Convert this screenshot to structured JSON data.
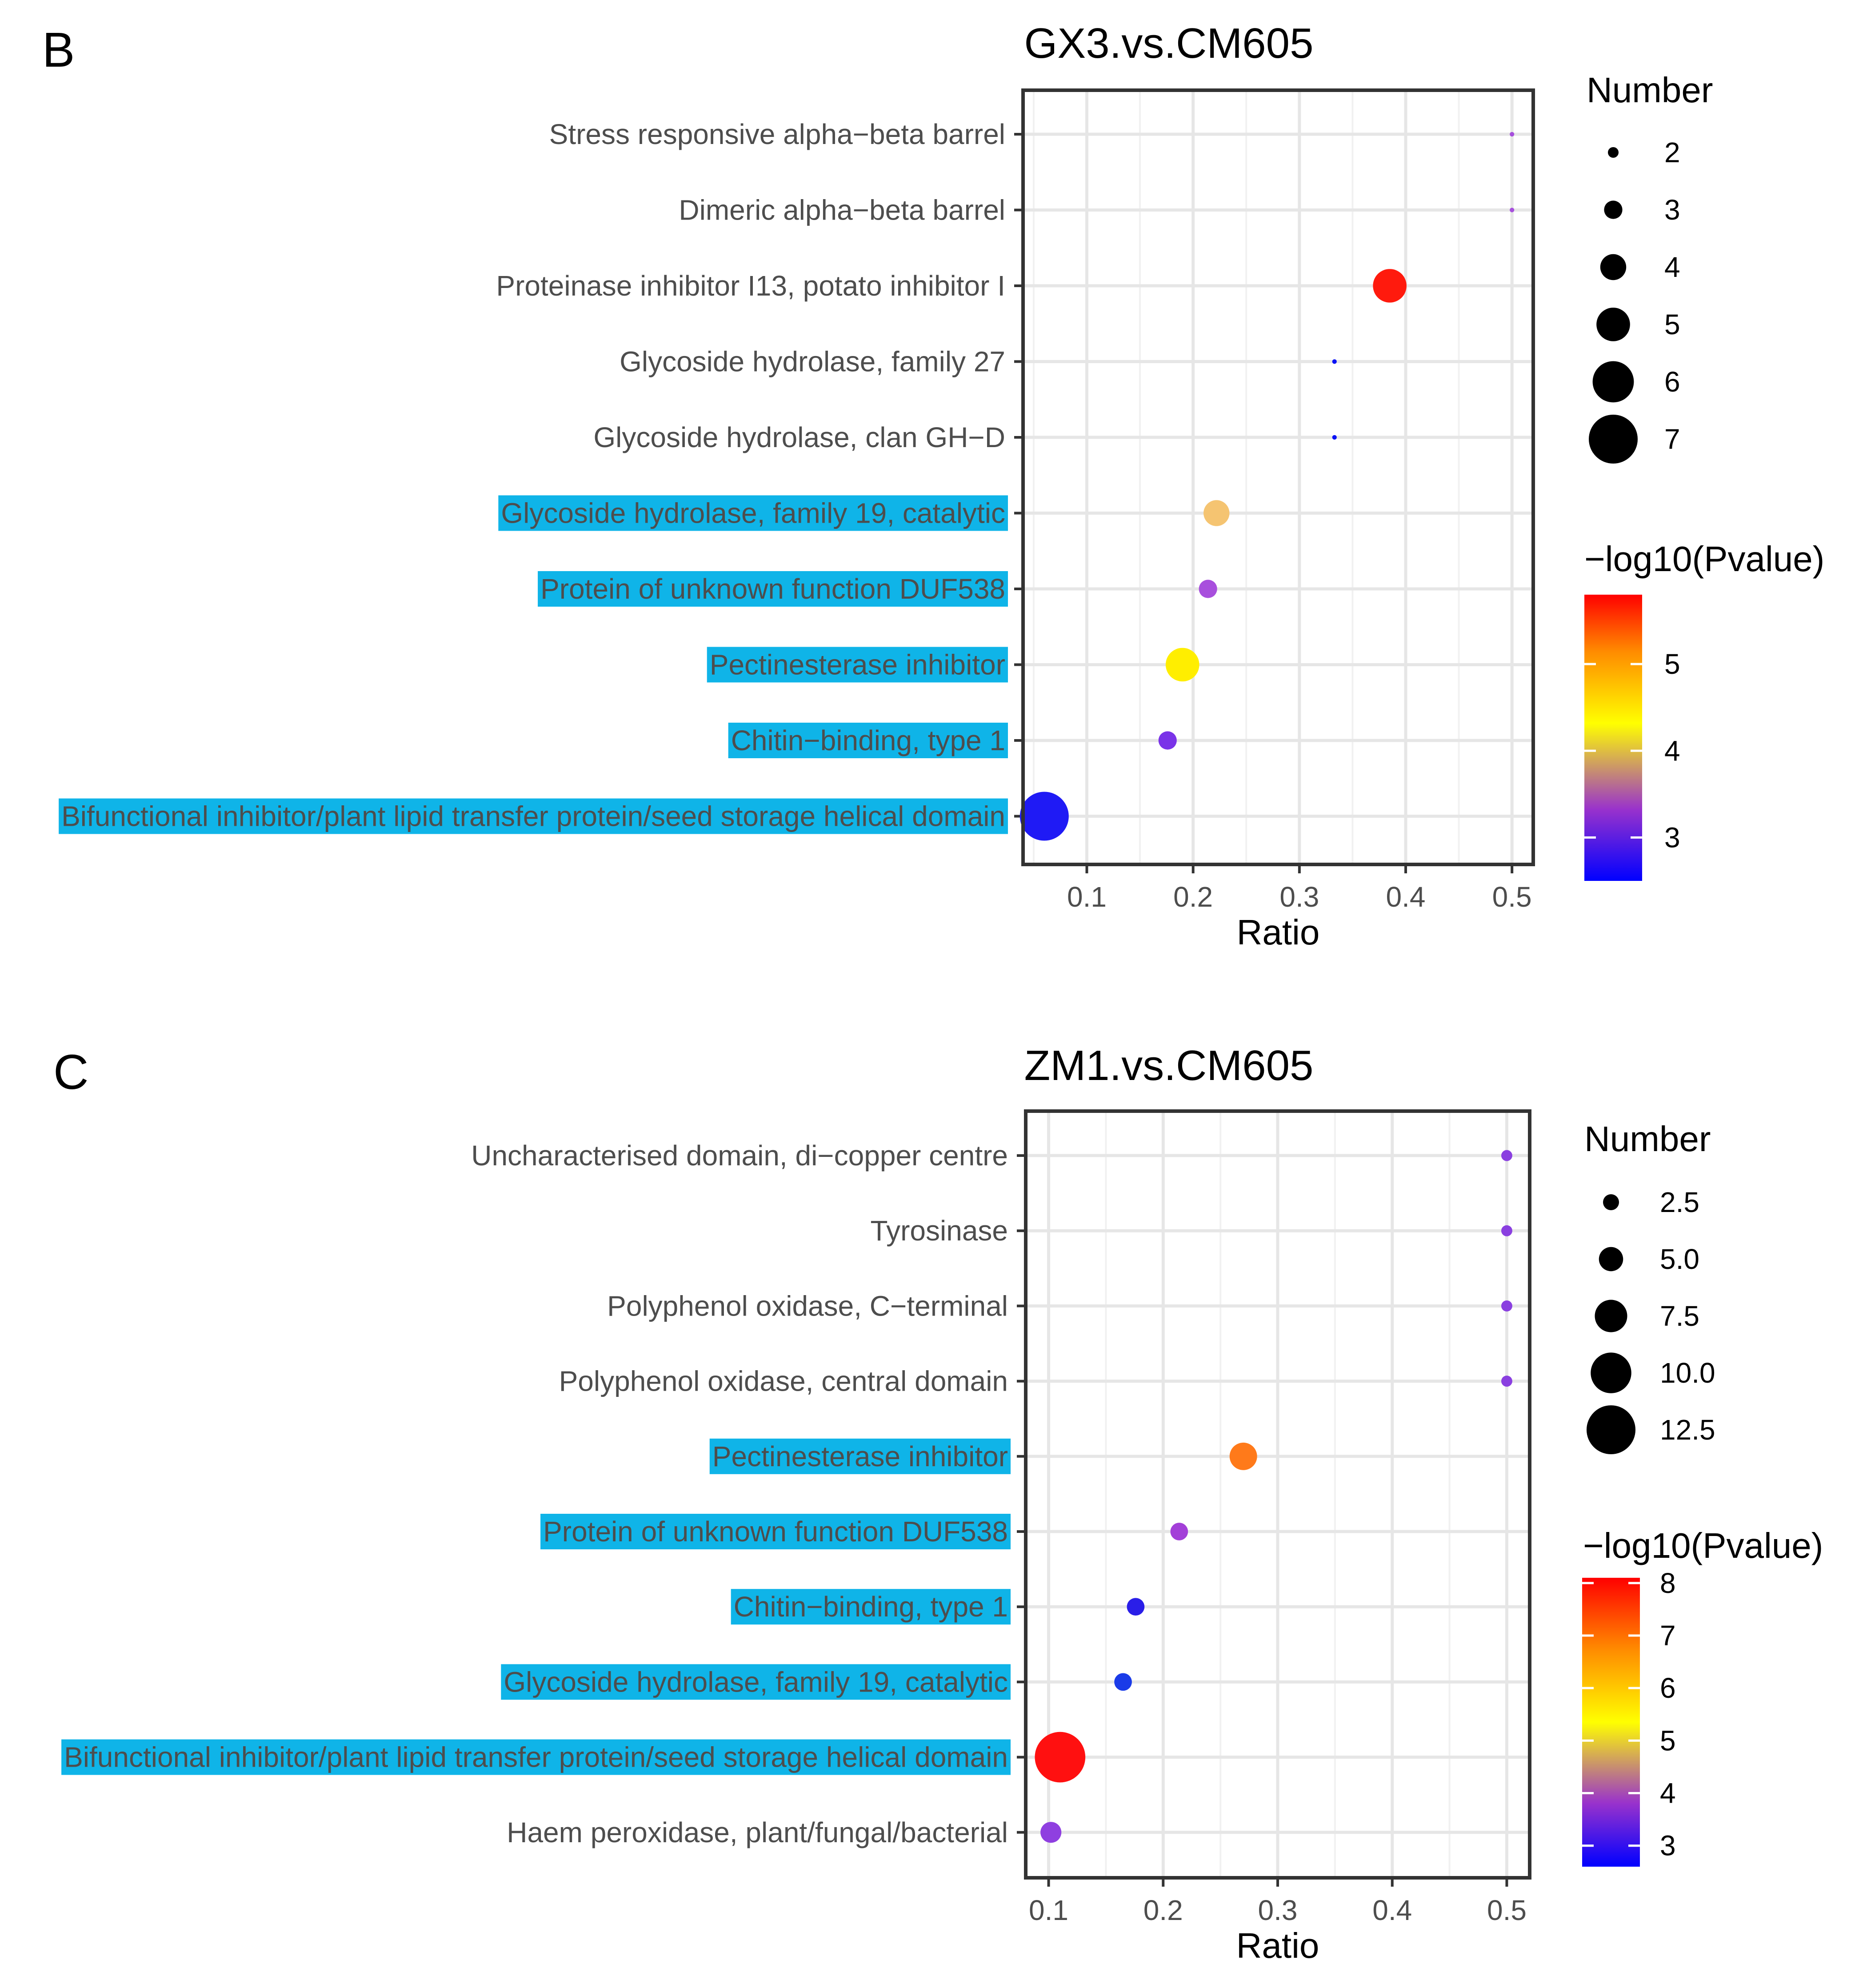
{
  "chart_data": [
    {
      "panel_label": "B",
      "type": "scatter",
      "title": "GX3.vs.CM605",
      "xlabel": "Ratio",
      "ylabel": "",
      "xlim": [
        0.04,
        0.52
      ],
      "xticks": [
        0.1,
        0.2,
        0.3,
        0.4,
        0.5
      ],
      "xtick_labels": [
        "0.1",
        "0.2",
        "0.3",
        "0.4",
        "0.5"
      ],
      "grid": true,
      "color_scale": {
        "stops": [
          "#0000ff",
          "#9932cc",
          "#ffff00",
          "#ff8c00",
          "#ff0000"
        ]
      },
      "points": [
        {
          "term": "Stress responsive alpha−beta barrel",
          "ratio": 0.5,
          "number": 1,
          "neglog10p": 3.0,
          "color": "#a64fdc",
          "highlight": false
        },
        {
          "term": "Dimeric alpha−beta barrel",
          "ratio": 0.5,
          "number": 1,
          "neglog10p": 3.0,
          "color": "#a64fdc",
          "highlight": false
        },
        {
          "term": "Proteinase inhibitor I13, potato inhibitor I",
          "ratio": 0.385,
          "number": 5,
          "neglog10p": 5.7,
          "color": "#ff1a0d",
          "highlight": false
        },
        {
          "term": "Glycoside hydrolase, family 27",
          "ratio": 0.333,
          "number": 1,
          "neglog10p": 2.5,
          "color": "#0a12f5",
          "highlight": false
        },
        {
          "term": "Glycoside hydrolase, clan GH−D",
          "ratio": 0.333,
          "number": 1,
          "neglog10p": 2.5,
          "color": "#0a12f5",
          "highlight": false
        },
        {
          "term": "Glycoside hydrolase, family 19, catalytic",
          "ratio": 0.222,
          "number": 4,
          "neglog10p": 3.8,
          "color": "#f5c471",
          "highlight": true
        },
        {
          "term": "Protein of unknown function DUF538",
          "ratio": 0.214,
          "number": 3,
          "neglog10p": 3.0,
          "color": "#a84fdd",
          "highlight": true
        },
        {
          "term": "Pectinesterase inhibitor",
          "ratio": 0.19,
          "number": 5,
          "neglog10p": 4.2,
          "color": "#ffee00",
          "highlight": true
        },
        {
          "term": "Chitin−binding, type 1",
          "ratio": 0.176,
          "number": 3,
          "neglog10p": 2.8,
          "color": "#7a33e8",
          "highlight": true
        },
        {
          "term": "Bifunctional inhibitor/plant lipid transfer protein/seed storage helical domain",
          "ratio": 0.06,
          "number": 7,
          "neglog10p": 2.5,
          "color": "#1f1af5",
          "highlight": true
        }
      ],
      "size_legend": {
        "title": "Number",
        "labels": [
          "2",
          "3",
          "4",
          "5",
          "6",
          "7"
        ],
        "values": [
          2,
          3,
          4,
          5,
          6,
          7
        ]
      },
      "color_legend": {
        "title": "−log10(Pvalue)",
        "labels": [
          "5",
          "4",
          "3"
        ],
        "values": [
          5,
          4,
          3
        ],
        "range": [
          2.5,
          5.8
        ]
      }
    },
    {
      "panel_label": "C",
      "type": "scatter",
      "title": "ZM1.vs.CM605",
      "xlabel": "Ratio",
      "ylabel": "",
      "xlim": [
        0.08,
        0.52
      ],
      "xticks": [
        0.1,
        0.2,
        0.3,
        0.4,
        0.5
      ],
      "xtick_labels": [
        "0.1",
        "0.2",
        "0.3",
        "0.4",
        "0.5"
      ],
      "grid": true,
      "color_scale": {
        "stops": [
          "#0000ff",
          "#9932cc",
          "#ffff00",
          "#ff8c00",
          "#ff0000"
        ]
      },
      "points": [
        {
          "term": "Uncharacterised domain, di−copper centre",
          "ratio": 0.5,
          "number": 1,
          "neglog10p": 3.3,
          "color": "#8a3fe0",
          "highlight": false
        },
        {
          "term": "Tyrosinase",
          "ratio": 0.5,
          "number": 1,
          "neglog10p": 3.3,
          "color": "#8a3fe0",
          "highlight": false
        },
        {
          "term": "Polyphenol oxidase, C−terminal",
          "ratio": 0.5,
          "number": 1,
          "neglog10p": 3.3,
          "color": "#8a3fe0",
          "highlight": false
        },
        {
          "term": "Polyphenol oxidase, central domain",
          "ratio": 0.5,
          "number": 1,
          "neglog10p": 3.3,
          "color": "#8a3fe0",
          "highlight": false
        },
        {
          "term": "Pectinesterase inhibitor",
          "ratio": 0.27,
          "number": 6,
          "neglog10p": 6.8,
          "color": "#ff7a1a",
          "highlight": true
        },
        {
          "term": "Protein of unknown function DUF538",
          "ratio": 0.214,
          "number": 3,
          "neglog10p": 3.5,
          "color": "#a33fd8",
          "highlight": true
        },
        {
          "term": "Chitin−binding, type 1",
          "ratio": 0.176,
          "number": 3,
          "neglog10p": 2.8,
          "color": "#2a1ee8",
          "highlight": true
        },
        {
          "term": "Glycoside hydrolase, family 19, catalytic",
          "ratio": 0.165,
          "number": 3,
          "neglog10p": 2.7,
          "color": "#1a3be8",
          "highlight": true
        },
        {
          "term": "Bifunctional inhibitor/plant lipid transfer protein/seed storage helical domain",
          "ratio": 0.11,
          "number": 13,
          "neglog10p": 8.0,
          "color": "#ff1010",
          "highlight": true
        },
        {
          "term": "Haem peroxidase, plant/fungal/bacterial",
          "ratio": 0.102,
          "number": 4,
          "neglog10p": 3.4,
          "color": "#8f3fe0",
          "highlight": false
        }
      ],
      "size_legend": {
        "title": "Number",
        "labels": [
          "2.5",
          "5.0",
          "7.5",
          "10.0",
          "12.5"
        ],
        "values": [
          2.5,
          5.0,
          7.5,
          10.0,
          12.5
        ]
      },
      "color_legend": {
        "title": "−log10(Pvalue)",
        "labels": [
          "8",
          "7",
          "6",
          "5",
          "4",
          "3"
        ],
        "values": [
          8,
          7,
          6,
          5,
          4,
          3
        ],
        "range": [
          2.6,
          8.1
        ]
      }
    }
  ]
}
